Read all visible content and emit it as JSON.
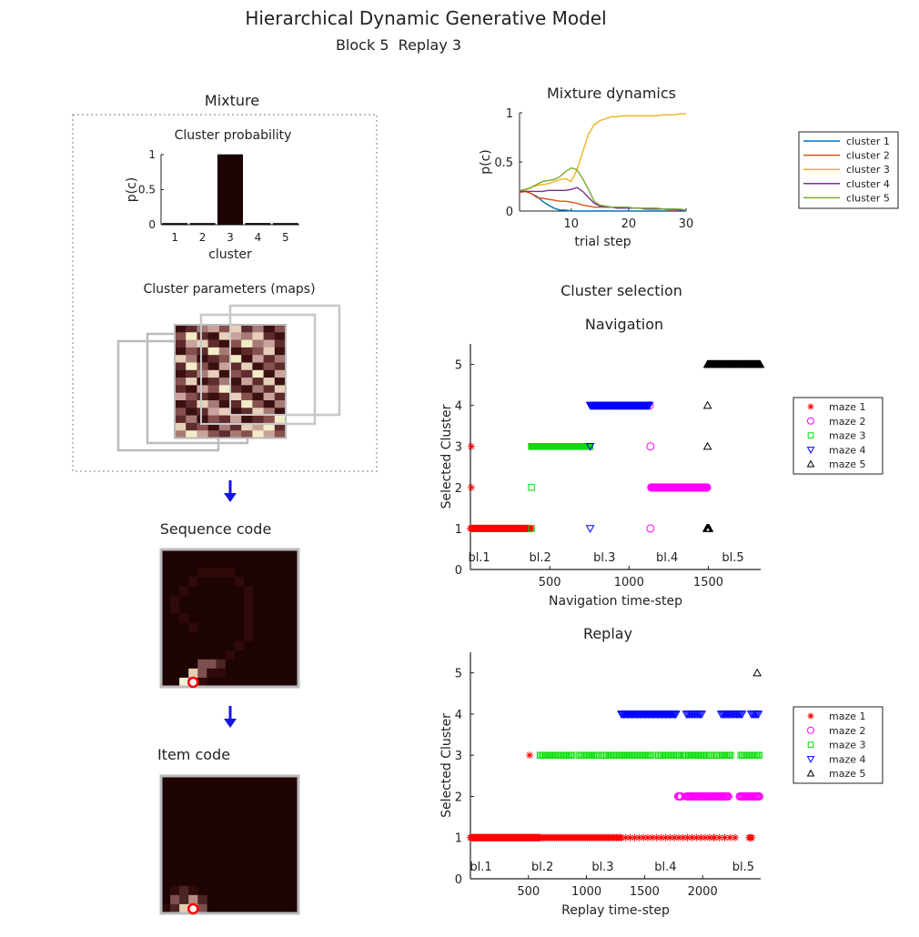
{
  "figure": {
    "title": "Hierarchical Dynamic Generative Model",
    "subtitle": "Block 5  Replay 3",
    "mixture_title": "Mixture",
    "cluster_prob_title": "Cluster probability",
    "cluster_params_title": "Cluster parameters (maps)",
    "sequence_title": "Sequence code",
    "item_title": "Item code",
    "cluster_selection_title": "Cluster selection",
    "arrow_color": "#1515e6"
  },
  "chart_data": [
    {
      "id": "cluster-probability",
      "type": "bar",
      "categories": [
        "1",
        "2",
        "3",
        "4",
        "5"
      ],
      "values": [
        0.01,
        0.01,
        1.0,
        0.02,
        0.01
      ],
      "xlabel": "cluster",
      "ylabel": "p(c)",
      "ylim": [
        0,
        1
      ],
      "yticks": [
        "0",
        "0.5",
        "1"
      ],
      "bar_color": "#1e0303"
    },
    {
      "id": "mixture-dynamics",
      "type": "line",
      "title": "Mixture dynamics",
      "xlabel": "trial step",
      "ylabel": "p(c)",
      "xlim": [
        1,
        30
      ],
      "ylim": [
        0,
        1
      ],
      "xticks": [
        "10",
        "20",
        "30"
      ],
      "yticks": [
        "0",
        "0.5",
        "1"
      ],
      "legend_position": "right",
      "x": [
        1,
        2,
        3,
        4,
        5,
        6,
        7,
        8,
        9,
        10,
        11,
        12,
        13,
        14,
        15,
        16,
        17,
        18,
        19,
        20,
        21,
        22,
        23,
        24,
        25,
        26,
        27,
        28,
        29,
        30
      ],
      "series": [
        {
          "name": "cluster 1",
          "color": "#0072bd",
          "values": [
            0.2,
            0.2,
            0.18,
            0.15,
            0.1,
            0.06,
            0.03,
            0.01,
            0.01,
            0,
            0,
            0,
            0,
            0,
            0,
            0,
            0,
            0,
            0,
            0,
            0,
            0,
            0,
            0,
            0,
            0,
            0,
            0,
            0,
            0
          ]
        },
        {
          "name": "cluster 2",
          "color": "#d95319",
          "values": [
            0.19,
            0.2,
            0.18,
            0.14,
            0.13,
            0.12,
            0.11,
            0.1,
            0.1,
            0.09,
            0.08,
            0.06,
            0.05,
            0.04,
            0.04,
            0.04,
            0.04,
            0.04,
            0.03,
            0.03,
            0.03,
            0.03,
            0.02,
            0.02,
            0.02,
            0.02,
            0.01,
            0.01,
            0.01,
            0.01
          ]
        },
        {
          "name": "cluster 3",
          "color": "#edb120",
          "values": [
            0.2,
            0.21,
            0.24,
            0.26,
            0.27,
            0.28,
            0.3,
            0.32,
            0.33,
            0.3,
            0.42,
            0.6,
            0.78,
            0.88,
            0.92,
            0.94,
            0.96,
            0.96,
            0.97,
            0.97,
            0.97,
            0.97,
            0.97,
            0.97,
            0.97,
            0.98,
            0.98,
            0.98,
            0.99,
            0.99
          ]
        },
        {
          "name": "cluster 4",
          "color": "#7e2f8e",
          "values": [
            0.2,
            0.2,
            0.2,
            0.2,
            0.2,
            0.21,
            0.21,
            0.21,
            0.21,
            0.22,
            0.24,
            0.2,
            0.14,
            0.08,
            0.05,
            0.04,
            0.04,
            0.03,
            0.03,
            0.03,
            0.03,
            0.03,
            0.02,
            0.02,
            0.02,
            0.02,
            0.02,
            0.02,
            0.01,
            0.01
          ]
        },
        {
          "name": "cluster 5",
          "color": "#77ac30",
          "values": [
            0.21,
            0.22,
            0.24,
            0.27,
            0.3,
            0.31,
            0.32,
            0.35,
            0.4,
            0.44,
            0.42,
            0.33,
            0.22,
            0.1,
            0.06,
            0.05,
            0.04,
            0.04,
            0.04,
            0.04,
            0.03,
            0.03,
            0.03,
            0.03,
            0.03,
            0.02,
            0.02,
            0.02,
            0.02,
            0.01
          ]
        }
      ]
    },
    {
      "id": "navigation",
      "type": "scatter",
      "title": "Navigation",
      "xlabel": "Navigation time-step",
      "ylabel": "Selected Cluster",
      "xlim": [
        0,
        1830
      ],
      "ylim": [
        0,
        5.5
      ],
      "xticks": [
        500,
        1000,
        1500
      ],
      "yticks": [
        0,
        1,
        2,
        3,
        4,
        5
      ],
      "legend_position": "right",
      "block_labels": [
        {
          "text": "bl.1",
          "x": 55
        },
        {
          "text": "bl.2",
          "x": 440
        },
        {
          "text": "bl.3",
          "x": 845
        },
        {
          "text": "bl.4",
          "x": 1240
        },
        {
          "text": "bl.5",
          "x": 1655
        }
      ],
      "series": [
        {
          "name": "maze 1",
          "marker": "star",
          "color": "#ff0000",
          "runs": [
            {
              "from": 0,
              "to": 385,
              "y": 1,
              "step": 4
            }
          ],
          "points": [
            [
              5,
              3
            ],
            [
              5,
              2
            ]
          ]
        },
        {
          "name": "maze 2",
          "marker": "circle",
          "color": "#ff00ff",
          "runs": [
            {
              "from": 1140,
              "to": 1495,
              "y": 2,
              "step": 4
            }
          ],
          "points": [
            [
              1135,
              1
            ],
            [
              1135,
              3
            ],
            [
              1130,
              4
            ]
          ]
        },
        {
          "name": "maze 3",
          "marker": "square",
          "color": "#00dd00",
          "runs": [
            {
              "from": 385,
              "to": 755,
              "y": 3,
              "step": 4
            }
          ],
          "points": [
            [
              385,
              1
            ],
            [
              385,
              2
            ]
          ]
        },
        {
          "name": "maze 4",
          "marker": "triangle-down",
          "color": "#0000ff",
          "runs": [
            {
              "from": 755,
              "to": 1130,
              "y": 4,
              "step": 4
            }
          ],
          "points": [
            [
              755,
              3
            ],
            [
              755,
              1
            ]
          ]
        },
        {
          "name": "maze 5",
          "marker": "triangle-up",
          "color": "#000000",
          "runs": [
            {
              "from": 1495,
              "to": 1830,
              "y": 5,
              "step": 4
            },
            {
              "from": 1490,
              "to": 1505,
              "y": 1,
              "step": 3
            }
          ],
          "points": [
            [
              1495,
              4
            ],
            [
              1495,
              3
            ]
          ]
        }
      ]
    },
    {
      "id": "replay",
      "type": "scatter",
      "title": "Replay",
      "xlabel": "Replay time-step",
      "ylabel": "Selected Cluster",
      "xlim": [
        0,
        2500
      ],
      "ylim": [
        0,
        5.5
      ],
      "xticks": [
        500,
        1000,
        1500,
        2000
      ],
      "yticks": [
        0,
        1,
        2,
        3,
        4,
        5
      ],
      "legend_position": "right",
      "block_labels": [
        {
          "text": "bl.1",
          "x": 90
        },
        {
          "text": "bl.2",
          "x": 620
        },
        {
          "text": "bl.3",
          "x": 1140
        },
        {
          "text": "bl.4",
          "x": 1680
        },
        {
          "text": "bl.5",
          "x": 2350
        }
      ],
      "series": [
        {
          "name": "maze 1",
          "marker": "star",
          "color": "#ff0000",
          "runs": [
            {
              "from": 0,
              "to": 600,
              "y": 1,
              "step": 5
            },
            {
              "from": 600,
              "to": 1300,
              "y": 1,
              "step": 14
            },
            {
              "from": 1300,
              "to": 2100,
              "y": 1,
              "step": 38
            },
            {
              "from": 2100,
              "to": 2300,
              "y": 1,
              "step": 45
            },
            {
              "from": 2400,
              "to": 2430,
              "y": 1,
              "step": 12
            }
          ],
          "points": [
            [
              510,
              3
            ]
          ]
        },
        {
          "name": "maze 2",
          "marker": "circle",
          "color": "#ff00ff",
          "runs": [
            {
              "from": 1790,
              "to": 1820,
              "y": 2,
              "step": 8
            },
            {
              "from": 1860,
              "to": 2220,
              "y": 2,
              "step": 8
            },
            {
              "from": 2320,
              "to": 2490,
              "y": 2,
              "step": 8
            }
          ],
          "points": []
        },
        {
          "name": "maze 3",
          "marker": "square",
          "color": "#00dd00",
          "runs": [
            {
              "from": 600,
              "to": 880,
              "y": 3,
              "step": 12
            },
            {
              "from": 940,
              "to": 1100,
              "y": 3,
              "step": 12
            },
            {
              "from": 1150,
              "to": 1560,
              "y": 3,
              "step": 12
            },
            {
              "from": 1620,
              "to": 1800,
              "y": 3,
              "step": 12
            },
            {
              "from": 1830,
              "to": 2080,
              "y": 3,
              "step": 12
            },
            {
              "from": 2120,
              "to": 2250,
              "y": 3,
              "step": 12
            },
            {
              "from": 2330,
              "to": 2490,
              "y": 3,
              "step": 12
            }
          ],
          "points": []
        },
        {
          "name": "maze 4",
          "marker": "triangle-down",
          "color": "#0000ff",
          "runs": [
            {
              "from": 1300,
              "to": 1770,
              "y": 4,
              "step": 10
            },
            {
              "from": 1860,
              "to": 2000,
              "y": 4,
              "step": 12
            },
            {
              "from": 2160,
              "to": 2340,
              "y": 4,
              "step": 12
            },
            {
              "from": 2420,
              "to": 2480,
              "y": 4,
              "step": 12
            }
          ],
          "points": []
        },
        {
          "name": "maze 5",
          "marker": "triangle-up",
          "color": "#000000",
          "runs": [],
          "points": [
            [
              2470,
              5
            ]
          ]
        }
      ]
    }
  ],
  "heatmaps": {
    "cluster_maps": {
      "colors": [
        "#1e0303",
        "#3b1010",
        "#5e2c2c",
        "#86514e",
        "#a67b76",
        "#c9a39b",
        "#e6d0b9",
        "#f3ecc8"
      ],
      "rows": [
        [
          1,
          2,
          4,
          5,
          3,
          6,
          2,
          4,
          1,
          3
        ],
        [
          3,
          7,
          2,
          1,
          6,
          5,
          4,
          6,
          2,
          1
        ],
        [
          2,
          5,
          6,
          2,
          1,
          3,
          7,
          4,
          5,
          2
        ],
        [
          1,
          3,
          2,
          7,
          4,
          1,
          2,
          3,
          6,
          1
        ],
        [
          6,
          4,
          1,
          2,
          3,
          7,
          1,
          5,
          2,
          4
        ],
        [
          2,
          7,
          3,
          1,
          5,
          2,
          6,
          1,
          3,
          2
        ],
        [
          1,
          2,
          4,
          6,
          1,
          3,
          2,
          7,
          1,
          5
        ],
        [
          3,
          6,
          1,
          2,
          4,
          1,
          5,
          2,
          6,
          1
        ],
        [
          2,
          1,
          5,
          3,
          7,
          2,
          1,
          4,
          2,
          6
        ],
        [
          5,
          3,
          2,
          1,
          2,
          6,
          3,
          1,
          5,
          2
        ],
        [
          1,
          2,
          6,
          4,
          1,
          2,
          7,
          3,
          1,
          4
        ],
        [
          3,
          1,
          2,
          5,
          6,
          1,
          2,
          6,
          4,
          1
        ],
        [
          2,
          4,
          1,
          3,
          2,
          5,
          1,
          2,
          3,
          7
        ],
        [
          6,
          2,
          3,
          1,
          4,
          2,
          6,
          5,
          7,
          2
        ],
        [
          4,
          7,
          5,
          3,
          2,
          4,
          3,
          7,
          5,
          3
        ]
      ]
    },
    "sequence_code": {
      "colors": [
        "#1e0303",
        "#2e0a0a",
        "#4d2424",
        "#7d4f4f",
        "#b58c82",
        "#e9cdb1",
        "#fbf2d8"
      ],
      "cells": [
        [
          2,
          4,
          1
        ],
        [
          2,
          5,
          1
        ],
        [
          2,
          6,
          1
        ],
        [
          2,
          7,
          1
        ],
        [
          3,
          3,
          1
        ],
        [
          3,
          8,
          1
        ],
        [
          4,
          2,
          1
        ],
        [
          4,
          9,
          1
        ],
        [
          5,
          1,
          1
        ],
        [
          5,
          9,
          1
        ],
        [
          6,
          1,
          1
        ],
        [
          6,
          9,
          1
        ],
        [
          7,
          2,
          1
        ],
        [
          7,
          9,
          1
        ],
        [
          8,
          3,
          1
        ],
        [
          8,
          9,
          1
        ],
        [
          9,
          9,
          1
        ],
        [
          10,
          8,
          1
        ],
        [
          11,
          7,
          1
        ],
        [
          12,
          4,
          3
        ],
        [
          12,
          5,
          3
        ],
        [
          12,
          6,
          2
        ],
        [
          13,
          3,
          5
        ],
        [
          13,
          4,
          3
        ],
        [
          13,
          5,
          1
        ],
        [
          13,
          6,
          1
        ],
        [
          14,
          2,
          6
        ],
        [
          14,
          3,
          2
        ],
        [
          14,
          4,
          1
        ]
      ],
      "marker": [
        14,
        3
      ]
    },
    "item_code": {
      "colors": [
        "#1e0303",
        "#2e0a0a",
        "#4d2424",
        "#7d4f4f",
        "#b58c82",
        "#e9cdb1",
        "#fbf2d8"
      ],
      "cells": [
        [
          12,
          1,
          1
        ],
        [
          12,
          2,
          2
        ],
        [
          12,
          3,
          1
        ],
        [
          13,
          1,
          3
        ],
        [
          13,
          2,
          2
        ],
        [
          13,
          3,
          4
        ],
        [
          13,
          4,
          2
        ],
        [
          14,
          0,
          1
        ],
        [
          14,
          1,
          2
        ],
        [
          14,
          2,
          5
        ],
        [
          14,
          3,
          6
        ],
        [
          14,
          4,
          3
        ]
      ],
      "marker": [
        14,
        3
      ]
    }
  }
}
